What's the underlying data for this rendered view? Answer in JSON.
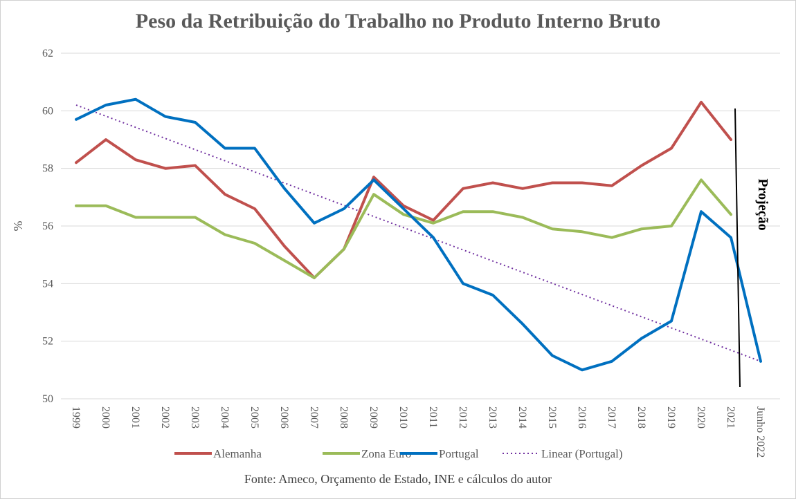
{
  "chart_data": {
    "type": "line",
    "title": "Peso da Retribuição do Trabalho no Produto Interno Bruto",
    "ylabel": "%",
    "xlabel": "",
    "ylim": [
      50,
      62
    ],
    "yticks": [
      50,
      52,
      54,
      56,
      58,
      60,
      62
    ],
    "categories": [
      "1999",
      "2000",
      "2001",
      "2002",
      "2003",
      "2004",
      "2005",
      "2006",
      "2007",
      "2008",
      "2009",
      "2010",
      "2011",
      "2012",
      "2013",
      "2014",
      "2015",
      "2016",
      "2017",
      "2018",
      "2019",
      "2020",
      "2021",
      "Junho 2022"
    ],
    "series": [
      {
        "name": "Alemanha",
        "color": "#c0504d",
        "values": [
          58.2,
          59.0,
          58.3,
          58.0,
          58.1,
          57.1,
          56.6,
          55.3,
          54.2,
          55.2,
          57.7,
          56.7,
          56.2,
          57.3,
          57.5,
          57.3,
          57.5,
          57.5,
          57.4,
          58.1,
          58.7,
          60.3,
          59.0,
          null
        ]
      },
      {
        "name": "Zona Euro",
        "color": "#9bbb59",
        "values": [
          56.7,
          56.7,
          56.3,
          56.3,
          56.3,
          55.7,
          55.4,
          54.8,
          54.2,
          55.2,
          57.1,
          56.4,
          56.1,
          56.5,
          56.5,
          56.3,
          55.9,
          55.8,
          55.6,
          55.9,
          56.0,
          57.6,
          56.4,
          null
        ]
      },
      {
        "name": "Portugal",
        "color": "#0070c0",
        "values": [
          59.7,
          60.2,
          60.4,
          59.8,
          59.6,
          58.7,
          58.7,
          57.3,
          56.1,
          56.6,
          57.6,
          56.6,
          55.6,
          54.0,
          53.6,
          52.6,
          51.5,
          51.0,
          51.3,
          52.1,
          52.7,
          56.5,
          55.6,
          51.3
        ]
      }
    ],
    "trendline": {
      "name": "Linear (Portugal)",
      "color": "#7030a0",
      "start": 60.2,
      "end": 51.3
    },
    "annotation": "Projeção",
    "grid": true,
    "legend": "bottom"
  },
  "source": "Fonte: Ameco, Orçamento de Estado, INE e cálculos do autor"
}
